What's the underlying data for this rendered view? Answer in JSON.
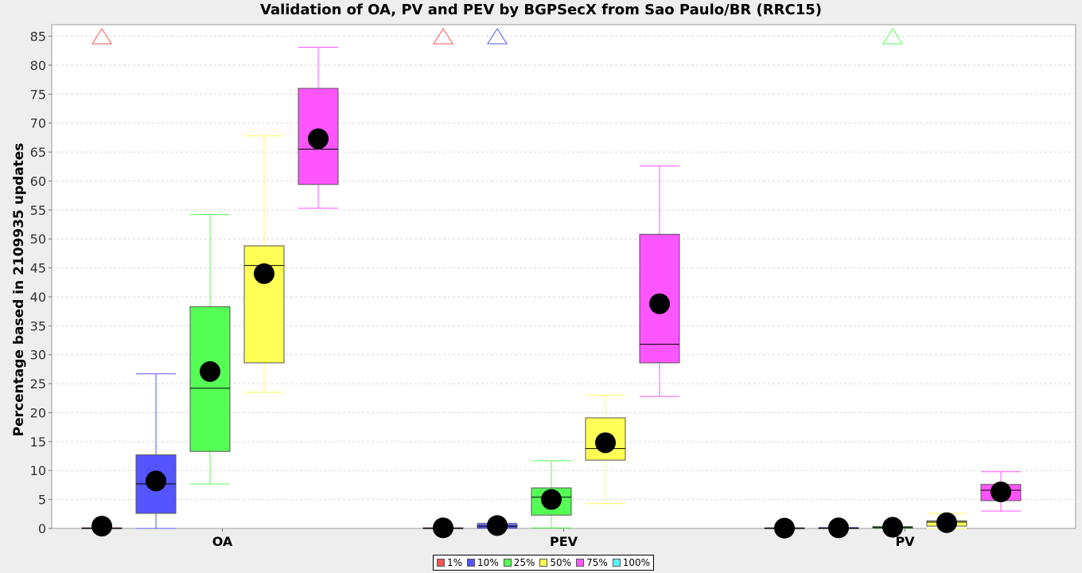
{
  "chart_data": {
    "type": "boxplot",
    "title": "Validation of OA, PV and PEV by BGPSecX from Sao Paulo/BR (RRC15)",
    "xlabel": "",
    "ylabel": "Percentage based in 2109935 updates",
    "ylim": [
      0,
      87
    ],
    "yticks": [
      0,
      5,
      10,
      15,
      20,
      25,
      30,
      35,
      40,
      45,
      50,
      55,
      60,
      65,
      70,
      75,
      80,
      85
    ],
    "grid": true,
    "legend_position": "bottom",
    "categories": [
      "OA",
      "PEV",
      "PV"
    ],
    "series": [
      {
        "name": "1%",
        "color": "#ff5555",
        "boxes": [
          {
            "min": 0,
            "q1": 0,
            "median": 0,
            "q3": 0.1,
            "max": 0.1,
            "mean": 0.4,
            "outlier_above_range": true
          },
          {
            "min": 0,
            "q1": 0,
            "median": 0,
            "q3": 0.1,
            "max": 0.1,
            "mean": 0.1,
            "outlier_above_range": true
          },
          {
            "min": 0,
            "q1": 0,
            "median": 0,
            "q3": 0.1,
            "max": 0.1,
            "mean": 0.05,
            "outlier_above_range": false
          }
        ]
      },
      {
        "name": "10%",
        "color": "#5555ff",
        "boxes": [
          {
            "min": 0,
            "q1": 2.6,
            "median": 7.7,
            "q3": 12.7,
            "max": 26.7,
            "mean": 8.2,
            "outlier_above_range": false
          },
          {
            "min": 0,
            "q1": 0.1,
            "median": 0.4,
            "q3": 0.7,
            "max": 0.9,
            "mean": 0.5,
            "outlier_above_range": true
          },
          {
            "min": 0,
            "q1": 0,
            "median": 0.05,
            "q3": 0.1,
            "max": 0.15,
            "mean": 0.1,
            "outlier_above_range": false
          }
        ]
      },
      {
        "name": "25%",
        "color": "#55ff55",
        "boxes": [
          {
            "min": 7.7,
            "q1": 13.3,
            "median": 24.2,
            "q3": 38.3,
            "max": 54.2,
            "mean": 27.1,
            "outlier_above_range": false
          },
          {
            "min": 0.1,
            "q1": 2.3,
            "median": 5.4,
            "q3": 7.0,
            "max": 11.7,
            "mean": 5.0,
            "outlier_above_range": false
          },
          {
            "min": 0,
            "q1": 0.05,
            "median": 0.15,
            "q3": 0.3,
            "max": 0.35,
            "mean": 0.2,
            "outlier_above_range": true
          }
        ]
      },
      {
        "name": "50%",
        "color": "#ffff55",
        "boxes": [
          {
            "min": 23.5,
            "q1": 28.6,
            "median": 45.4,
            "q3": 48.8,
            "max": 67.8,
            "mean": 44.0,
            "outlier_above_range": false
          },
          {
            "min": 4.3,
            "q1": 11.8,
            "median": 13.8,
            "q3": 19.1,
            "max": 23.0,
            "mean": 14.8,
            "outlier_above_range": false
          },
          {
            "min": 0,
            "q1": 0.4,
            "median": 1.1,
            "q3": 1.3,
            "max": 2.6,
            "mean": 1.0,
            "outlier_above_range": false
          }
        ]
      },
      {
        "name": "75%",
        "color": "#ff55ff",
        "boxes": [
          {
            "min": 55.3,
            "q1": 59.4,
            "median": 65.5,
            "q3": 76.0,
            "max": 83.1,
            "mean": 67.3,
            "outlier_above_range": false
          },
          {
            "min": 22.8,
            "q1": 28.6,
            "median": 31.8,
            "q3": 50.8,
            "max": 62.6,
            "mean": 38.8,
            "outlier_above_range": false
          },
          {
            "min": 3.0,
            "q1": 4.8,
            "median": 6.6,
            "q3": 7.6,
            "max": 9.8,
            "mean": 6.3,
            "outlier_above_range": false
          }
        ]
      },
      {
        "name": "100%",
        "color": "#55ffff",
        "boxes": []
      }
    ]
  }
}
